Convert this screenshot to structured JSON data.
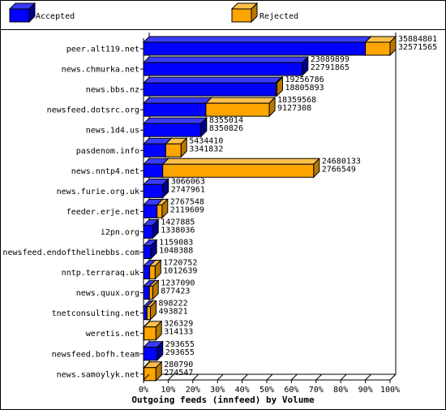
{
  "chart_data": {
    "type": "bar",
    "orientation": "horizontal",
    "stacked_overlay": true,
    "title": "Outgoing feeds (innfeed) by Volume",
    "xlabel": "Outgoing feeds (innfeed) by Volume",
    "ylabel": "",
    "xlim": [
      0,
      100
    ],
    "x_unit": "%",
    "x_ticks": [
      "0%",
      "10%",
      "20%",
      "30%",
      "40%",
      "50%",
      "60%",
      "70%",
      "80%",
      "90%",
      "100%"
    ],
    "legend_position": "top",
    "categories": [
      "peer.alt119.net",
      "news.chmurka.net",
      "news.bbs.nz",
      "newsfeed.dotsrc.org",
      "news.1d4.us",
      "pasdenom.info",
      "news.nntp4.net",
      "news.furie.org.uk",
      "feeder.erje.net",
      "i2pn.org",
      "newsfeed.endofthelinebbs.com",
      "nntp.terraraq.uk",
      "news.quux.org",
      "tnetconsulting.net",
      "weretis.net",
      "newsfeed.bofh.team",
      "news.samoylyk.net"
    ],
    "series": [
      {
        "name": "Accepted",
        "color": "#0000ff",
        "value_labels": [
          "35884801",
          "23089899",
          "19256786",
          "18359568",
          "8355014",
          "5434410",
          "24680133",
          "3066063",
          "2767548",
          "1427885",
          "1159083",
          "1720752",
          "1237090",
          "898222",
          "326329",
          "293655",
          "280790"
        ],
        "values_percent": [
          90.0,
          64.4,
          53.7,
          25.3,
          23.3,
          9.0,
          7.8,
          7.8,
          5.5,
          3.7,
          3.0,
          2.5,
          2.4,
          1.4,
          0.2,
          5.5,
          0.2
        ]
      },
      {
        "name": "Rejected",
        "color": "#ffa500",
        "value_labels": [
          "32571565",
          "22791865",
          "18805893",
          "9127308",
          "8350826",
          "3341832",
          "2766549",
          "2747961",
          "2119609",
          "1338036",
          "1048388",
          "1012639",
          "877423",
          "493821",
          "314133",
          "293655",
          "274547"
        ],
        "values_percent": [
          100.0,
          64.4,
          54.1,
          51.0,
          23.3,
          15.2,
          69.0,
          7.8,
          7.5,
          3.7,
          3.0,
          4.7,
          3.7,
          2.8,
          5.0,
          5.5,
          5.0
        ]
      }
    ],
    "colors": {
      "accepted": "#0000ff",
      "accepted_top": "#3a3aff",
      "accepted_side": "#00008b",
      "rejected": "#ffa500",
      "rejected_top": "#ffc04a",
      "rejected_side": "#b87800",
      "edge": "#000000",
      "background": "#ffffff"
    }
  }
}
